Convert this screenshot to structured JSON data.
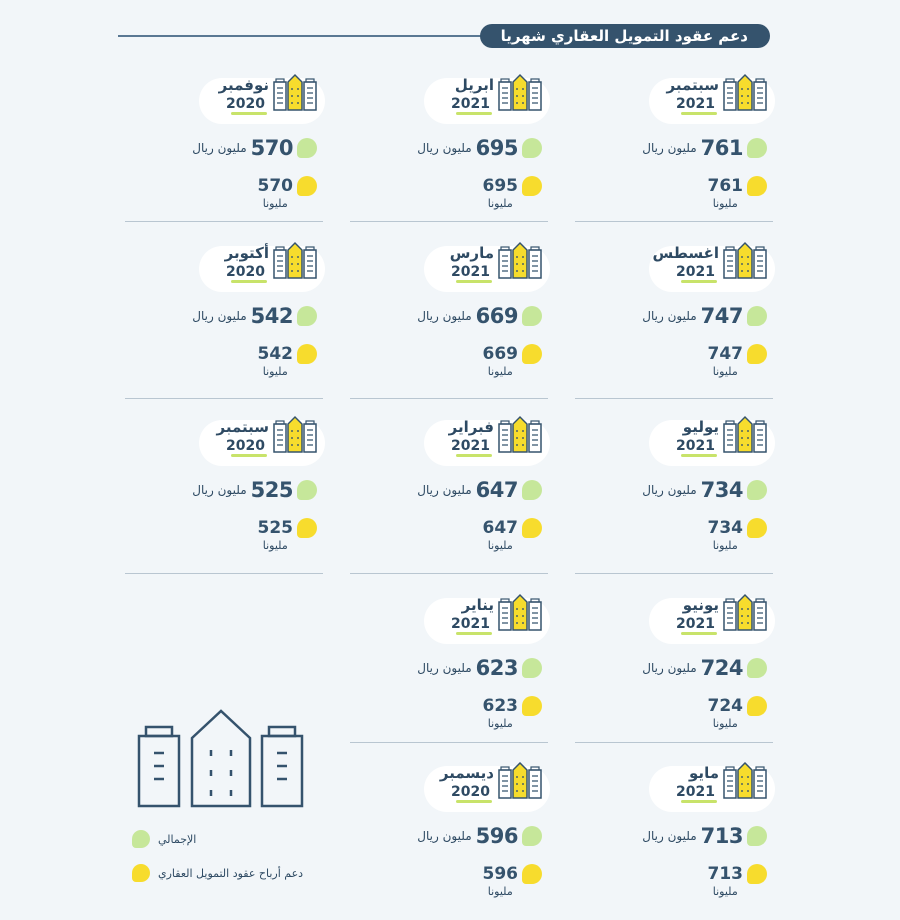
{
  "title": "دعم عقود التمويل العقاري شهريا",
  "colors": {
    "total": "#c6e79a",
    "support": "#f7dc2d",
    "primary": "#35536d"
  },
  "cells": [
    {
      "month": "سبتمبر",
      "year": "2021",
      "total_value": "761",
      "total_unit": "مليون ريال",
      "support_value": "761",
      "support_unit": "مليونا"
    },
    {
      "month": "ابريل",
      "year": "2021",
      "total_value": "695",
      "total_unit": "مليون ريال",
      "support_value": "695",
      "support_unit": "مليونا"
    },
    {
      "month": "نوفمبر",
      "year": "2020",
      "total_value": "570",
      "total_unit": "مليون ريال",
      "support_value": "570",
      "support_unit": "مليونا"
    },
    {
      "month": "اغسطس",
      "year": "2021",
      "total_value": "747",
      "total_unit": "مليون ريال",
      "support_value": "747",
      "support_unit": "مليونا"
    },
    {
      "month": "مارس",
      "year": "2021",
      "total_value": "669",
      "total_unit": "مليون ريال",
      "support_value": "669",
      "support_unit": "مليونا"
    },
    {
      "month": "أكتوبر",
      "year": "2020",
      "total_value": "542",
      "total_unit": "مليون ريال",
      "support_value": "542",
      "support_unit": "مليونا"
    },
    {
      "month": "يوليو",
      "year": "2021",
      "total_value": "734",
      "total_unit": "مليون ريال",
      "support_value": "734",
      "support_unit": "مليونا"
    },
    {
      "month": "فبراير",
      "year": "2021",
      "total_value": "647",
      "total_unit": "مليون ريال",
      "support_value": "647",
      "support_unit": "مليونا"
    },
    {
      "month": "سبتمبر",
      "year": "2020",
      "total_value": "525",
      "total_unit": "مليون ريال",
      "support_value": "525",
      "support_unit": "مليونا"
    },
    {
      "month": "يونيو",
      "year": "2021",
      "total_value": "724",
      "total_unit": "مليون ريال",
      "support_value": "724",
      "support_unit": "مليونا"
    },
    {
      "month": "يناير",
      "year": "2021",
      "total_value": "623",
      "total_unit": "مليون ريال",
      "support_value": "623",
      "support_unit": "مليونا"
    },
    {
      "month": "مايو",
      "year": "2021",
      "total_value": "713",
      "total_unit": "مليون ريال",
      "support_value": "713",
      "support_unit": "مليونا"
    },
    {
      "month": "ديسمبر",
      "year": "2020",
      "total_value": "596",
      "total_unit": "مليون ريال",
      "support_value": "596",
      "support_unit": "مليونا"
    }
  ],
  "legend": {
    "total_label": "الإجمالي",
    "support_label": "دعم أرباح عقود التمويل العقاري"
  }
}
